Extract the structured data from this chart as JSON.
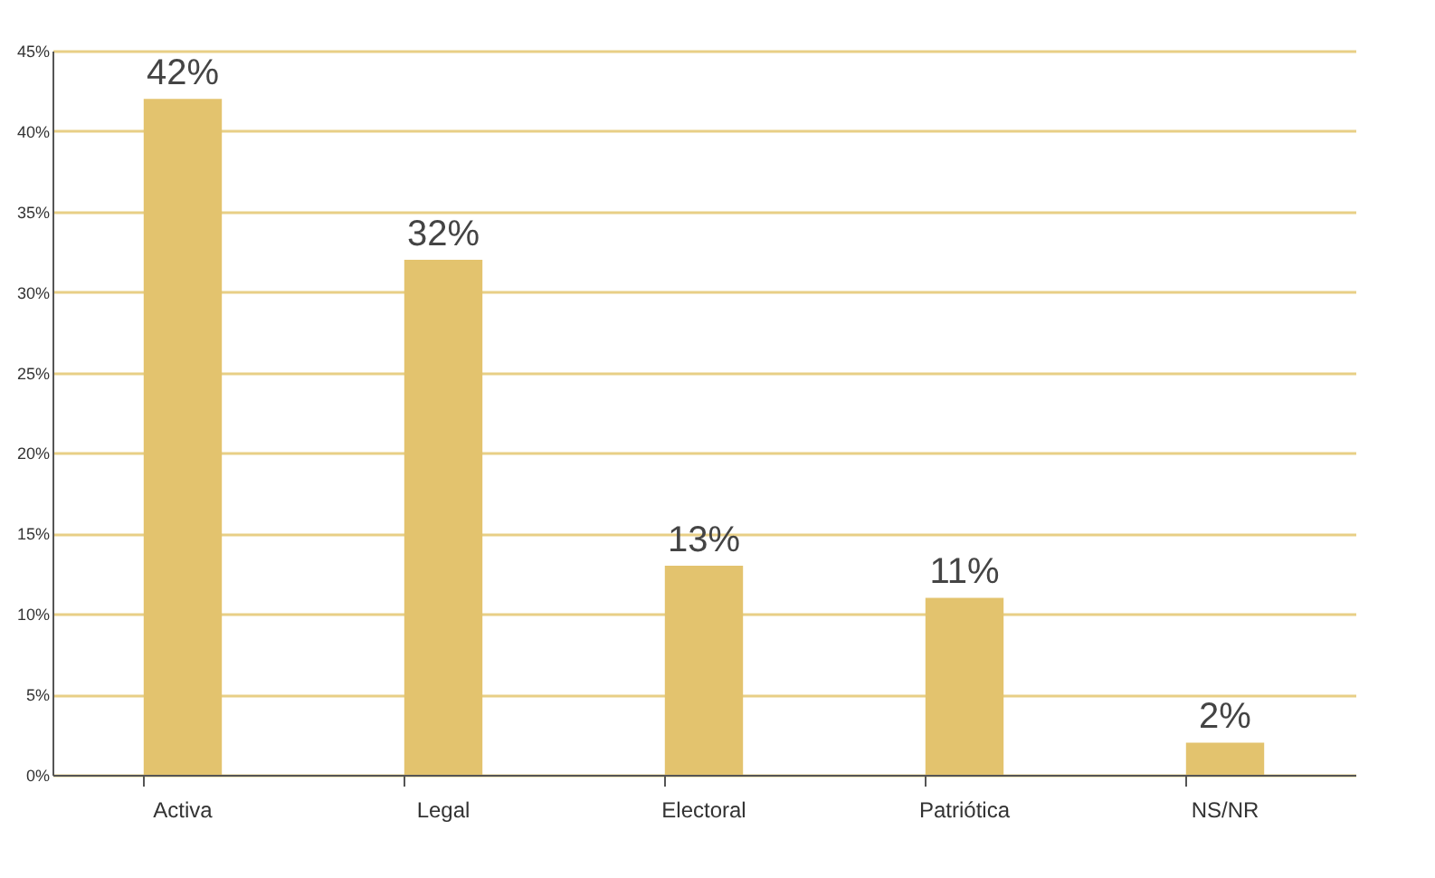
{
  "chart_data": {
    "type": "bar",
    "categories": [
      "Activa",
      "Legal",
      "Electoral",
      "Patriótica",
      "NS/NR"
    ],
    "values": [
      42,
      32,
      13,
      11,
      2
    ],
    "value_labels": [
      "42%",
      "32%",
      "13%",
      "11%",
      "2%"
    ],
    "color": "#e3c36e",
    "ylim": [
      0,
      45
    ],
    "yticks": [
      {
        "value": 0,
        "label": "0%"
      },
      {
        "value": 5,
        "label": "5%"
      },
      {
        "value": 10,
        "label": "10%"
      },
      {
        "value": 15,
        "label": "15%"
      },
      {
        "value": 20,
        "label": "20%"
      },
      {
        "value": 25,
        "label": "25%"
      },
      {
        "value": 30,
        "label": "30%"
      },
      {
        "value": 35,
        "label": "35%"
      },
      {
        "value": 40,
        "label": "40%"
      },
      {
        "value": 45,
        "label": "45%"
      }
    ],
    "grid": "y"
  }
}
